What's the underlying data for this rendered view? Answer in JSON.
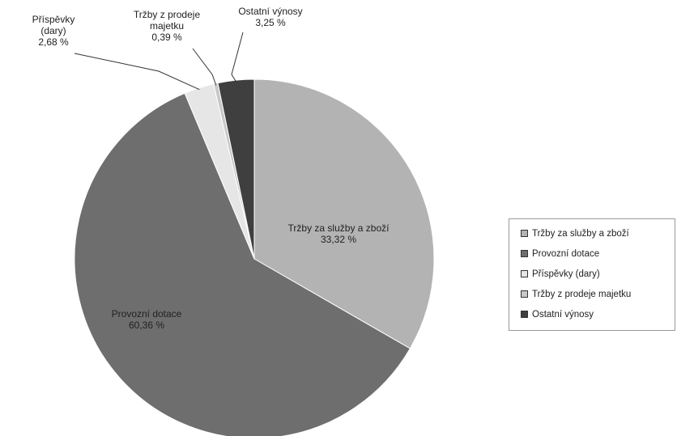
{
  "chart_data": {
    "type": "pie",
    "title": "",
    "slices": [
      {
        "name": "Tržby za služby a zboží",
        "value": 33.32,
        "label": "33,32 %",
        "color": "#b3b3b3"
      },
      {
        "name": "Provozní dotace",
        "value": 60.36,
        "label": "60,36 %",
        "color": "#6e6e6e"
      },
      {
        "name": "Příspěvky (dary)",
        "value": 2.68,
        "label": "2,68 %",
        "color": "#e6e6e6"
      },
      {
        "name": "Tržby z prodeje majetku",
        "value": 0.39,
        "label": "0,39 %",
        "color": "#c8c8c8"
      },
      {
        "name": "Ostatní výnosy",
        "value": 3.25,
        "label": "3,25 %",
        "color": "#3f3f3f"
      }
    ],
    "start_angle": "12 o'clock",
    "direction": "clockwise",
    "legend": {
      "position": "right"
    }
  }
}
